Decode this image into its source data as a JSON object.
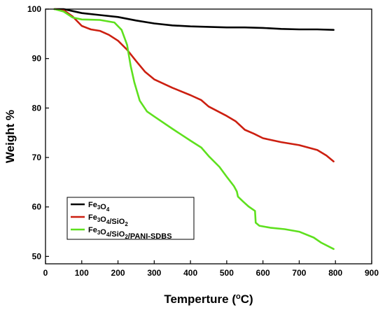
{
  "chart_data": {
    "type": "line",
    "title": "",
    "xlabel": "Temperture (°C)",
    "xlabel_main": "Temperture (",
    "xlabel_deg": "o",
    "xlabel_unit_end": "C)",
    "ylabel": "Weight %",
    "xlim": [
      0,
      900
    ],
    "ylim": [
      48.5,
      100
    ],
    "xticks": [
      0,
      100,
      200,
      300,
      400,
      500,
      600,
      700,
      800,
      900
    ],
    "yticks": [
      50,
      60,
      70,
      80,
      90,
      100
    ],
    "grid": false,
    "legend_position": "bottom-left",
    "series": [
      {
        "name": "Fe3O4",
        "name_parts": [
          {
            "t": "Fe"
          },
          {
            "t": "3",
            "sub": true
          },
          {
            "t": "O"
          },
          {
            "t": "4",
            "sub": true
          }
        ],
        "color": "#000000",
        "points": [
          [
            25,
            100
          ],
          [
            50,
            100
          ],
          [
            75,
            99.6
          ],
          [
            100,
            99.2
          ],
          [
            150,
            98.8
          ],
          [
            200,
            98.4
          ],
          [
            250,
            97.7
          ],
          [
            300,
            97.1
          ],
          [
            350,
            96.7
          ],
          [
            400,
            96.5
          ],
          [
            450,
            96.4
          ],
          [
            500,
            96.3
          ],
          [
            550,
            96.3
          ],
          [
            600,
            96.2
          ],
          [
            650,
            96.0
          ],
          [
            700,
            95.9
          ],
          [
            750,
            95.9
          ],
          [
            795,
            95.8
          ]
        ]
      },
      {
        "name": "Fe3O4/SiO2",
        "name_parts": [
          {
            "t": "Fe"
          },
          {
            "t": "3",
            "sub": true
          },
          {
            "t": "O"
          },
          {
            "t": "4",
            "sub": true
          },
          {
            "t": "/SiO"
          },
          {
            "t": "2",
            "sub": true
          }
        ],
        "color": "#cc1f10",
        "points": [
          [
            25,
            100
          ],
          [
            50,
            99.8
          ],
          [
            75,
            98.5
          ],
          [
            100,
            96.6
          ],
          [
            125,
            95.9
          ],
          [
            150,
            95.6
          ],
          [
            175,
            94.8
          ],
          [
            200,
            93.6
          ],
          [
            225,
            91.8
          ],
          [
            250,
            89.5
          ],
          [
            275,
            87.3
          ],
          [
            300,
            85.8
          ],
          [
            350,
            84.1
          ],
          [
            400,
            82.6
          ],
          [
            430,
            81.6
          ],
          [
            450,
            80.3
          ],
          [
            500,
            78.4
          ],
          [
            525,
            77.3
          ],
          [
            550,
            75.6
          ],
          [
            575,
            74.8
          ],
          [
            600,
            73.9
          ],
          [
            650,
            73.1
          ],
          [
            700,
            72.5
          ],
          [
            750,
            71.5
          ],
          [
            775,
            70.4
          ],
          [
            795,
            69.2
          ]
        ]
      },
      {
        "name": "Fe3O4/SiO2/PANI-SDBS",
        "name_parts": [
          {
            "t": "Fe"
          },
          {
            "t": "3",
            "sub": true
          },
          {
            "t": "O"
          },
          {
            "t": "4",
            "sub": true
          },
          {
            "t": "/SiO"
          },
          {
            "t": "2",
            "sub": true
          },
          {
            "t": "/PANI-SDBS"
          }
        ],
        "color": "#5ee01e",
        "points": [
          [
            25,
            100
          ],
          [
            50,
            99.5
          ],
          [
            75,
            98.3
          ],
          [
            100,
            97.9
          ],
          [
            150,
            97.8
          ],
          [
            190,
            97.3
          ],
          [
            210,
            95.8
          ],
          [
            225,
            92.8
          ],
          [
            235,
            88.5
          ],
          [
            245,
            85.2
          ],
          [
            260,
            81.5
          ],
          [
            280,
            79.3
          ],
          [
            300,
            78.3
          ],
          [
            350,
            75.8
          ],
          [
            400,
            73.4
          ],
          [
            430,
            72.0
          ],
          [
            450,
            70.3
          ],
          [
            480,
            68.1
          ],
          [
            500,
            66.1
          ],
          [
            520,
            64.2
          ],
          [
            528,
            63.1
          ],
          [
            531,
            62.1
          ],
          [
            545,
            61.1
          ],
          [
            560,
            60.1
          ],
          [
            578,
            59.2
          ],
          [
            580,
            56.8
          ],
          [
            590,
            56.2
          ],
          [
            620,
            55.8
          ],
          [
            660,
            55.5
          ],
          [
            700,
            55.0
          ],
          [
            740,
            53.8
          ],
          [
            760,
            52.8
          ],
          [
            795,
            51.5
          ]
        ]
      }
    ]
  }
}
